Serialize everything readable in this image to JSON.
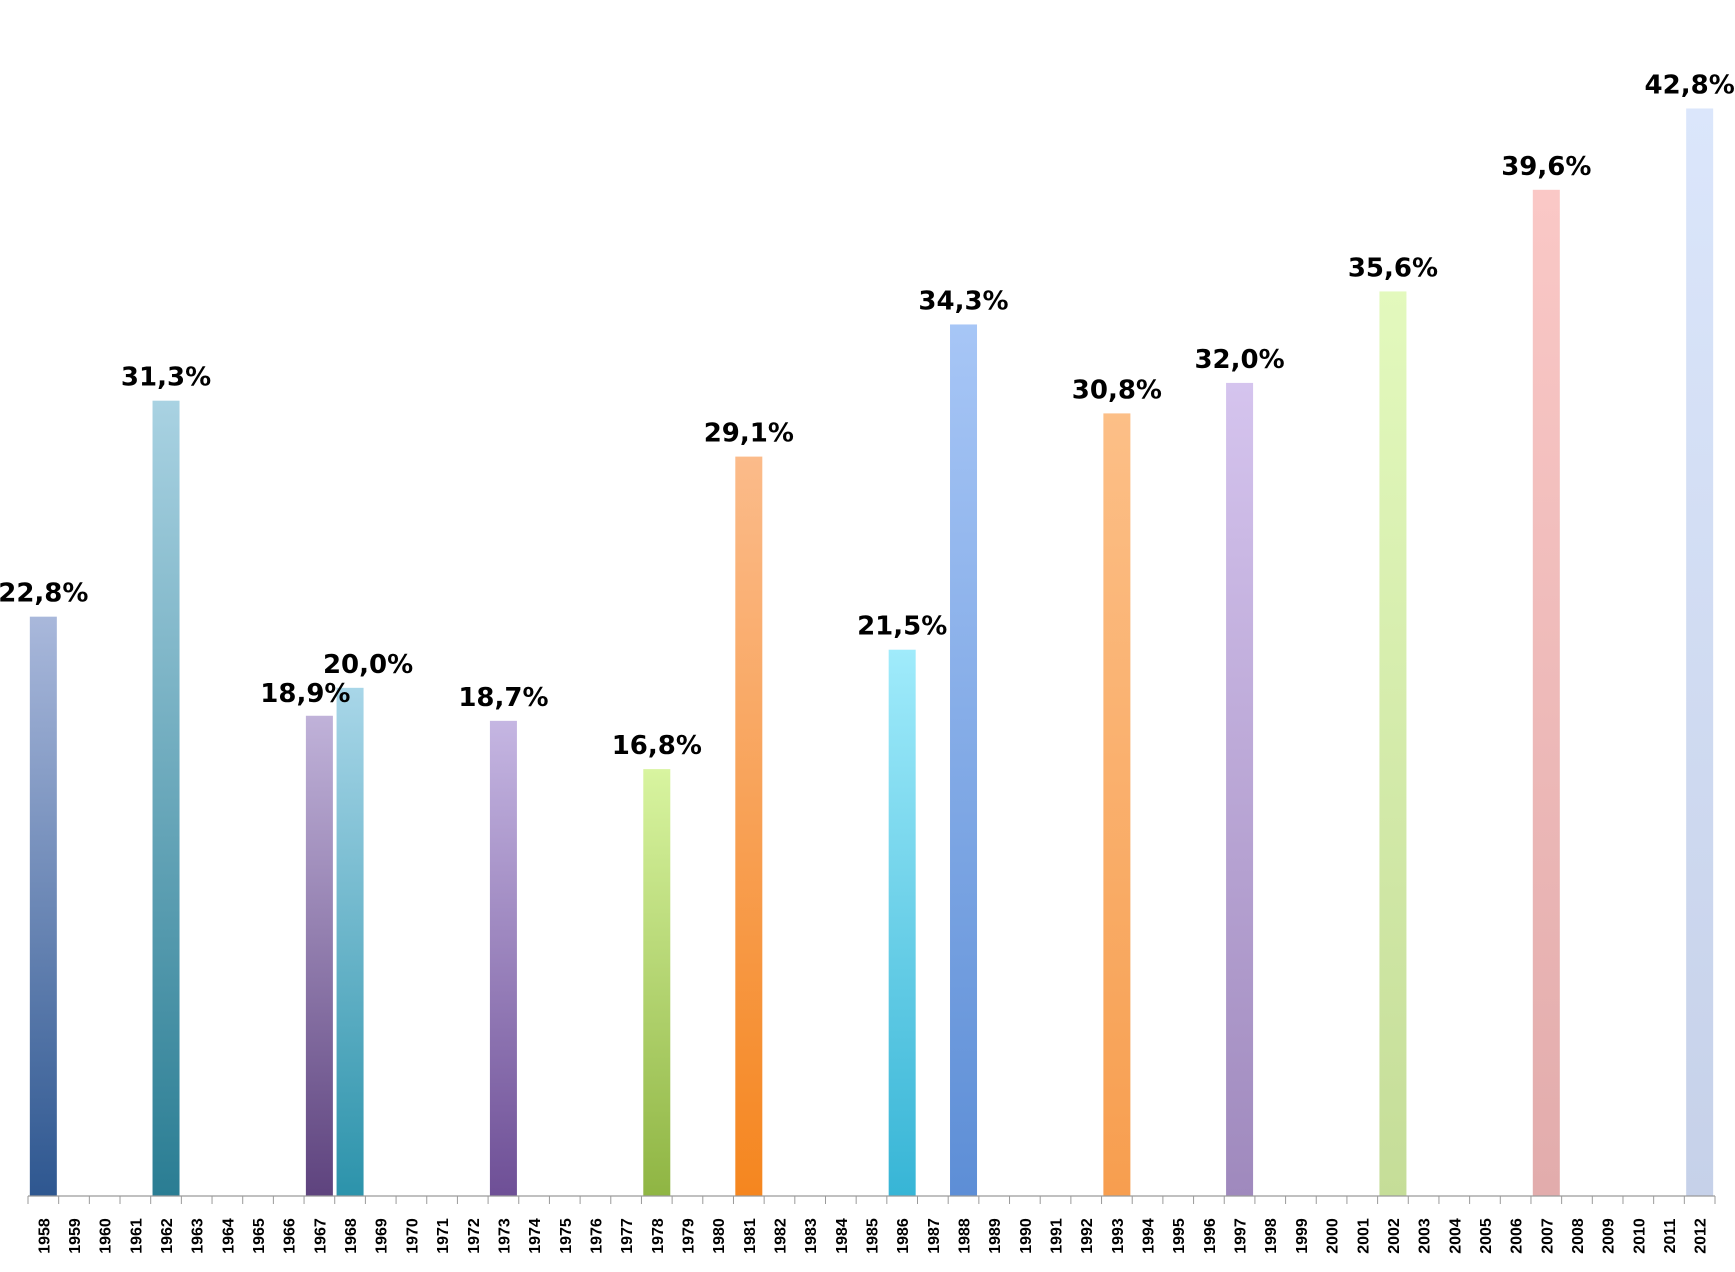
{
  "chart_data": {
    "type": "bar",
    "title": "",
    "xlabel": "",
    "ylabel": "",
    "ylim": [
      0,
      44
    ],
    "grid": false,
    "legend": "none",
    "categories": [
      "1958",
      "1959",
      "1960",
      "1961",
      "1962",
      "1963",
      "1964",
      "1965",
      "1966",
      "1967",
      "1968",
      "1969",
      "1970",
      "1971",
      "1972",
      "1973",
      "1974",
      "1975",
      "1976",
      "1977",
      "1978",
      "1979",
      "1980",
      "1981",
      "1982",
      "1983",
      "1984",
      "1985",
      "1986",
      "1987",
      "1988",
      "1989",
      "1990",
      "1991",
      "1992",
      "1993",
      "1994",
      "1995",
      "1996",
      "1997",
      "1998",
      "1999",
      "2000",
      "2001",
      "2002",
      "2003",
      "2004",
      "2005",
      "2006",
      "2007",
      "2008",
      "2009",
      "2010",
      "2011",
      "2012"
    ],
    "bars": [
      {
        "category": "1958",
        "value": 22.8,
        "label": "22,8%",
        "color_top": "#a9b8db",
        "color_bottom": "#2e5790"
      },
      {
        "category": "1962",
        "value": 31.3,
        "label": "31,3%",
        "color_top": "#a9d2e2",
        "color_bottom": "#2a7d93"
      },
      {
        "category": "1967",
        "value": 18.9,
        "label": "18,9%",
        "color_top": "#c0b2d9",
        "color_bottom": "#5e437e"
      },
      {
        "category": "1968",
        "value": 20.0,
        "label": "20,0%",
        "color_top": "#a8d6e8",
        "color_bottom": "#2c93ab"
      },
      {
        "category": "1973",
        "value": 18.7,
        "label": "18,7%",
        "color_top": "#c5b6e2",
        "color_bottom": "#6e4f96"
      },
      {
        "category": "1978",
        "value": 16.8,
        "label": "16,8%",
        "color_top": "#d8f4a0",
        "color_bottom": "#8fb543"
      },
      {
        "category": "1981",
        "value": 29.1,
        "label": "29,1%",
        "color_top": "#fbbb8a",
        "color_bottom": "#f5861f"
      },
      {
        "category": "1986",
        "value": 21.5,
        "label": "21,5%",
        "color_top": "#a0ebfb",
        "color_bottom": "#37b5d6"
      },
      {
        "category": "1988",
        "value": 34.3,
        "label": "34,3%",
        "color_top": "#a7c6f6",
        "color_bottom": "#5d8ed6"
      },
      {
        "category": "1993",
        "value": 30.8,
        "label": "30,8%",
        "color_top": "#fcbf87",
        "color_bottom": "#f79e4f"
      },
      {
        "category": "1997",
        "value": 32.0,
        "label": "32,0%",
        "color_top": "#d5c4ee",
        "color_bottom": "#9f89bd"
      },
      {
        "category": "2002",
        "value": 35.6,
        "label": "35,6%",
        "color_top": "#e3f9bd",
        "color_bottom": "#c5dd98"
      },
      {
        "category": "2007",
        "value": 39.6,
        "label": "39,6%",
        "color_top": "#fac8c6",
        "color_bottom": "#e2acac"
      },
      {
        "category": "2012",
        "value": 42.8,
        "label": "42,8%",
        "color_top": "#dbe6fb",
        "color_bottom": "#c6d1e9"
      }
    ]
  }
}
